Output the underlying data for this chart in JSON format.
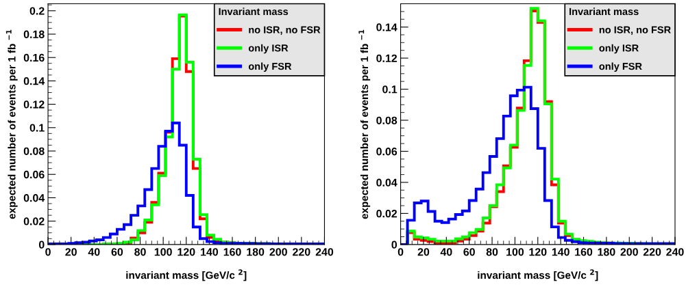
{
  "chart_data": [
    {
      "type": "histogram",
      "xlabel": "invariant mass [GeV/c $^{2}$]",
      "ylabel": "expected number of events per 1 fb $^{−1}$",
      "legend_title": "Invariant mass",
      "legend": "top right",
      "bins": [
        0,
        6,
        12,
        18,
        24,
        30,
        36,
        42,
        48,
        54,
        60,
        66,
        72,
        78,
        84,
        90,
        96,
        102,
        108,
        114,
        120,
        126,
        132,
        138,
        144,
        150,
        156,
        162,
        168,
        174,
        180,
        186,
        192,
        198,
        204,
        210,
        216,
        222,
        228,
        234,
        240
      ],
      "series": [
        {
          "name": "no ISR, no FSR",
          "color": "#ff0000",
          "values": [
            0,
            0,
            0,
            0,
            0,
            0,
            0,
            0,
            0.0005,
            0.0005,
            0.0005,
            0.001,
            0.0055,
            0.01,
            0.019,
            0.036,
            0.061,
            0.096,
            0.159,
            0.1955,
            0.148,
            0.065,
            0.022,
            0.006,
            0.003,
            0.002,
            0.0015,
            0.001,
            0.001,
            0.001,
            0.0008,
            0.0008,
            0.0006,
            0.0006,
            0.0005,
            0.0005,
            0.0005,
            0.0005,
            0.0005,
            0.0005
          ]
        },
        {
          "name": "only ISR",
          "color": "#00ff00",
          "values": [
            0,
            0,
            0,
            0,
            0,
            0,
            0,
            0,
            0.0005,
            0.0005,
            0.001,
            0.002,
            0.004,
            0.012,
            0.021,
            0.034,
            0.059,
            0.092,
            0.15,
            0.1965,
            0.156,
            0.073,
            0.0255,
            0.008,
            0.0045,
            0.002,
            0.0015,
            0.001,
            0.001,
            0.001,
            0.0008,
            0.0008,
            0.0006,
            0.0006,
            0.0005,
            0.0005,
            0.0005,
            0.0005,
            0.0005,
            0.0005
          ]
        },
        {
          "name": "only FSR",
          "color": "#0000ff",
          "values": [
            0.0005,
            0.0005,
            0.0005,
            0.001,
            0.0015,
            0.002,
            0.003,
            0.004,
            0.006,
            0.009,
            0.013,
            0.017,
            0.025,
            0.033,
            0.047,
            0.065,
            0.084,
            0.097,
            0.104,
            0.085,
            0.042,
            0.015,
            0.005,
            0.0025,
            0.0015,
            0.001,
            0.001,
            0.001,
            0.0008,
            0.0008,
            0.0006,
            0.0006,
            0.0005,
            0.0005,
            0.0005,
            0.0005,
            0.0005,
            0.0005,
            0.0005,
            0.0005
          ]
        }
      ],
      "xlim": [
        0,
        240
      ],
      "xticks": [
        0,
        20,
        40,
        60,
        80,
        100,
        120,
        140,
        160,
        180,
        200,
        220,
        240
      ],
      "ylim": [
        0,
        0.206
      ],
      "yticks": [
        0,
        0.02,
        0.04,
        0.06,
        0.08,
        0.1,
        0.12,
        0.14,
        0.16,
        0.18,
        0.2
      ]
    },
    {
      "type": "histogram",
      "xlabel": "invariant mass [GeV/c $^{2}$]",
      "ylabel": "expected number of events per 1 fb $^{−1}$",
      "legend_title": "Invariant mass",
      "legend": "top right",
      "bins": [
        0,
        6,
        12,
        18,
        24,
        30,
        36,
        42,
        48,
        54,
        60,
        66,
        72,
        78,
        84,
        90,
        96,
        102,
        108,
        114,
        120,
        126,
        132,
        138,
        144,
        150,
        156,
        162,
        168,
        174,
        180,
        186,
        192,
        198,
        204,
        210,
        216,
        222,
        228,
        234,
        240
      ],
      "series": [
        {
          "name": "no ISR, no FSR",
          "color": "#ff0000",
          "values": [
            0,
            0.0076,
            0.0034,
            0.0027,
            0.0019,
            0.0007,
            0.0007,
            0.001,
            0.0022,
            0.0034,
            0.0057,
            0.0086,
            0.0138,
            0.0243,
            0.034,
            0.0507,
            0.0626,
            0.0878,
            0.1183,
            0.1504,
            0.143,
            0.092,
            0.0384,
            0.0138,
            0.0057,
            0.0031,
            0.002,
            0.0015,
            0.001,
            0.001,
            0.001,
            0.0008,
            0.0008,
            0.0006,
            0.0006,
            0.0005,
            0.0005,
            0.0005,
            0.0005,
            0.0005
          ]
        },
        {
          "name": "only ISR",
          "color": "#00ff00",
          "values": [
            0,
            0.0086,
            0.0049,
            0.0042,
            0.0034,
            0.0022,
            0.0022,
            0.0022,
            0.0037,
            0.0049,
            0.0076,
            0.0097,
            0.0171,
            0.025,
            0.0384,
            0.0493,
            0.064,
            0.0863,
            0.1153,
            0.152,
            0.144,
            0.0905,
            0.0421,
            0.015,
            0.0067,
            0.0034,
            0.0025,
            0.002,
            0.0015,
            0.0012,
            0.001,
            0.001,
            0.0008,
            0.0008,
            0.0006,
            0.0006,
            0.0005,
            0.0005,
            0.0005,
            0.0005
          ]
        },
        {
          "name": "only FSR",
          "color": "#0000ff",
          "values": [
            0,
            0.0156,
            0.0268,
            0.028,
            0.0213,
            0.015,
            0.0141,
            0.0164,
            0.0193,
            0.0216,
            0.0283,
            0.0357,
            0.0463,
            0.0567,
            0.0682,
            0.0827,
            0.0957,
            0.0994,
            0.1013,
            0.0875,
            0.0619,
            0.0283,
            0.0113,
            0.0045,
            0.0027,
            0.0018,
            0.0012,
            0.001,
            0.001,
            0.0008,
            0.0008,
            0.0006,
            0.0006,
            0.0005,
            0.0005,
            0.0005,
            0.0005,
            0.0005,
            0.0005,
            0.0005
          ]
        }
      ],
      "xlim": [
        0,
        240
      ],
      "xticks": [
        0,
        20,
        40,
        60,
        80,
        100,
        120,
        140,
        160,
        180,
        200,
        220,
        240
      ],
      "ylim": [
        0,
        0.155
      ],
      "yticks": [
        0,
        0.02,
        0.04,
        0.06,
        0.08,
        0.1,
        0.12,
        0.14
      ]
    }
  ]
}
